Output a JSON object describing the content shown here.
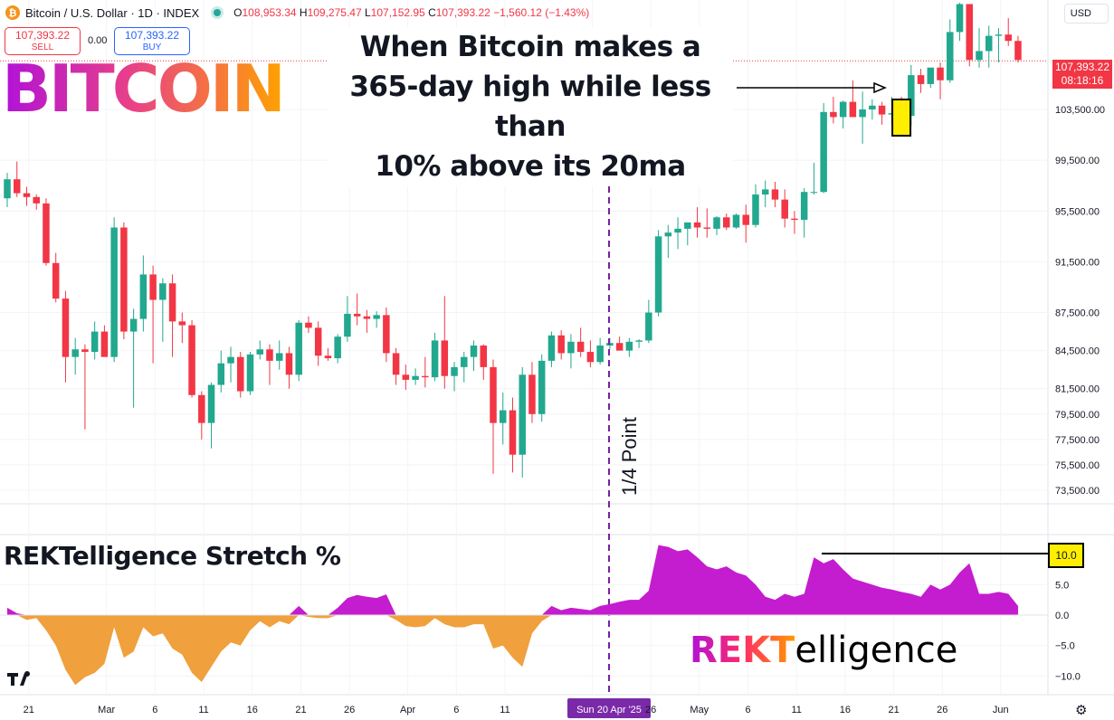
{
  "header": {
    "symbol": "Bitcoin / U.S. Dollar · 1D · INDEX",
    "coin_glyph": "₿",
    "ohlc": {
      "o_label": "O",
      "o": "108,953.34",
      "h_label": "H",
      "h": "109,275.47",
      "l_label": "L",
      "l": "107,152.95",
      "c_label": "C",
      "c": "107,393.22",
      "change": "−1,560.12 (−1.43%)"
    }
  },
  "trade": {
    "sell_price": "107,393.22",
    "sell_label": "SELL",
    "spread": "0.00",
    "buy_price": "107,393.22",
    "buy_label": "BUY"
  },
  "currency": "USD",
  "logo_text": "BITCOIN",
  "annotation": {
    "line1": "When Bitcoin makes a",
    "line2": "365-day high while less than",
    "line3": "10% above its 20ma"
  },
  "marker_label": "1/4 Point",
  "price_tag": {
    "price": "107,393.22",
    "countdown": "08:18:16"
  },
  "indicator": {
    "title": "REKTelligence Stretch %",
    "value_box": "10.0",
    "logo_a": "REKT",
    "logo_b": "elligence"
  },
  "colors": {
    "up": "#22a88e",
    "down": "#f23645",
    "pos_fill": "#c41ccf",
    "neg_fill": "#f0a03c",
    "marker": "#7a1fa2",
    "highlight": "#ffee00"
  },
  "chart_data": [
    {
      "type": "candlestick",
      "title": "Bitcoin / U.S. Dollar · 1D · INDEX",
      "y_ticks": [
        "103,500.00",
        "99,500.00",
        "95,500.00",
        "91,500.00",
        "87,500.00",
        "84,500.00",
        "81,500.00",
        "79,500.00",
        "77,500.00",
        "75,500.00",
        "73,500.00"
      ],
      "x_ticks": [
        "21",
        "Mar",
        "6",
        "11",
        "16",
        "21",
        "26",
        "Apr",
        "6",
        "11",
        "Sun 20 Apr '25",
        "26",
        "May",
        "6",
        "11",
        "16",
        "21",
        "26",
        "Jun"
      ],
      "ylim": [
        72000,
        111000
      ],
      "start_date": "2025-02-20",
      "ohlc": [
        [
          96500,
          98500,
          95800,
          98000
        ],
        [
          98000,
          99400,
          96600,
          96900
        ],
        [
          96900,
          97400,
          95900,
          96600
        ],
        [
          96600,
          96800,
          95600,
          96100
        ],
        [
          96100,
          96500,
          91200,
          91400
        ],
        [
          91400,
          92200,
          88300,
          88600
        ],
        [
          88600,
          89200,
          82000,
          84000
        ],
        [
          84000,
          85500,
          82600,
          84600
        ],
        [
          84600,
          85000,
          78300,
          84400
        ],
        [
          84400,
          86800,
          83800,
          86000
        ],
        [
          86000,
          86500,
          84200,
          84000
        ],
        [
          84000,
          95000,
          83600,
          94200
        ],
        [
          94200,
          94600,
          85400,
          86000
        ],
        [
          86000,
          87800,
          80000,
          87000
        ],
        [
          87000,
          92000,
          86000,
          90500
        ],
        [
          90500,
          91200,
          83500,
          88500
        ],
        [
          88500,
          90200,
          85200,
          89800
        ],
        [
          89800,
          90500,
          84000,
          86800
        ],
        [
          86800,
          87500,
          85100,
          86500
        ],
        [
          86500,
          86900,
          80800,
          81000
        ],
        [
          81000,
          81300,
          77500,
          78800
        ],
        [
          78800,
          82000,
          76800,
          81800
        ],
        [
          81800,
          84500,
          81200,
          83500
        ],
        [
          83500,
          84800,
          82000,
          84000
        ],
        [
          84000,
          84400,
          80800,
          81300
        ],
        [
          81300,
          84400,
          81000,
          84200
        ],
        [
          84200,
          85300,
          83800,
          84600
        ],
        [
          84600,
          85000,
          81800,
          83700
        ],
        [
          83700,
          85300,
          83000,
          84300
        ],
        [
          84300,
          84800,
          81500,
          82600
        ],
        [
          82600,
          86900,
          82100,
          86700
        ],
        [
          86700,
          87200,
          85900,
          86300
        ],
        [
          86300,
          86800,
          83300,
          84100
        ],
        [
          84100,
          84700,
          83700,
          83900
        ],
        [
          83900,
          85800,
          83500,
          85600
        ],
        [
          85600,
          88800,
          85200,
          87400
        ],
        [
          87400,
          89000,
          86500,
          87200
        ],
        [
          87200,
          87700,
          85900,
          87000
        ],
        [
          87000,
          87600,
          86300,
          87300
        ],
        [
          87300,
          87900,
          83600,
          84300
        ],
        [
          84300,
          84700,
          81800,
          82600
        ],
        [
          82600,
          83400,
          81400,
          82200
        ],
        [
          82200,
          83100,
          81800,
          82500
        ],
        [
          82500,
          84000,
          81600,
          82400
        ],
        [
          82400,
          85900,
          82100,
          85300
        ],
        [
          85300,
          88800,
          81500,
          82500
        ],
        [
          82500,
          83600,
          81300,
          83200
        ],
        [
          83200,
          84400,
          82000,
          84000
        ],
        [
          84000,
          85300,
          82900,
          84900
        ],
        [
          84900,
          85000,
          82200,
          83200
        ],
        [
          83200,
          83800,
          74800,
          78800
        ],
        [
          78800,
          81200,
          77100,
          79800
        ],
        [
          79800,
          80800,
          74900,
          76300
        ],
        [
          76300,
          83200,
          74500,
          82600
        ],
        [
          82600,
          83600,
          78800,
          79500
        ],
        [
          79500,
          84200,
          78900,
          83700
        ],
        [
          83700,
          86000,
          83200,
          85700
        ],
        [
          85700,
          86100,
          83800,
          84300
        ],
        [
          84300,
          85800,
          83100,
          85200
        ],
        [
          85200,
          86300,
          84000,
          84400
        ],
        [
          84400,
          85300,
          83200,
          83600
        ],
        [
          83600,
          85500,
          83400,
          84900
        ],
        [
          84900,
          85500,
          84600,
          85100
        ],
        [
          85100,
          85600,
          84600,
          84500
        ],
        [
          84500,
          85500,
          84000,
          85200
        ],
        [
          85200,
          85400,
          84700,
          85300
        ],
        [
          85300,
          88500,
          85100,
          87500
        ],
        [
          87500,
          94000,
          87200,
          93500
        ],
        [
          93500,
          94400,
          91800,
          93800
        ],
        [
          93800,
          95000,
          92500,
          94100
        ],
        [
          94100,
          94300,
          92800,
          94600
        ],
        [
          94600,
          95800,
          93400,
          94200
        ],
        [
          94200,
          95700,
          93400,
          94100
        ],
        [
          94100,
          95100,
          93600,
          95000
        ],
        [
          95000,
          95300,
          94000,
          94200
        ],
        [
          94200,
          95300,
          94100,
          95200
        ],
        [
          95200,
          96000,
          93000,
          94400
        ],
        [
          94400,
          97600,
          94200,
          96800
        ],
        [
          96800,
          97900,
          95800,
          97200
        ],
        [
          97200,
          97800,
          95800,
          96400
        ],
        [
          96400,
          97200,
          94200,
          94900
        ],
        [
          94900,
          95500,
          93700,
          94800
        ],
        [
          94800,
          97300,
          93400,
          97000
        ],
        [
          97000,
          99300,
          96800,
          97000
        ],
        [
          97000,
          104000,
          96900,
          103300
        ],
        [
          103300,
          104500,
          102400,
          102900
        ],
        [
          102900,
          104200,
          102000,
          104100
        ],
        [
          104100,
          105800,
          103000,
          102900
        ],
        [
          102900,
          104900,
          100800,
          103500
        ],
        [
          103500,
          104300,
          102700,
          103800
        ],
        [
          103800,
          104100,
          102300,
          103100
        ],
        [
          103100,
          104500,
          102400,
          103200
        ],
        [
          103200,
          104500,
          102500,
          103000
        ],
        [
          103000,
          107000,
          102200,
          106200
        ],
        [
          106200,
          106700,
          104800,
          105500
        ],
        [
          105500,
          106700,
          105200,
          106800
        ],
        [
          106800,
          107200,
          104300,
          105800
        ],
        [
          105800,
          110600,
          105600,
          109600
        ],
        [
          109600,
          111900,
          108900,
          111800
        ],
        [
          111800,
          111800,
          106900,
          107400
        ],
        [
          107400,
          109900,
          106800,
          108100
        ],
        [
          108100,
          110100,
          106800,
          109300
        ],
        [
          109300,
          109900,
          107200,
          109400
        ],
        [
          109400,
          110700,
          108500,
          108900
        ],
        [
          108900,
          109300,
          107200,
          107400
        ]
      ]
    },
    {
      "type": "area",
      "title": "REKTelligence Stretch %",
      "y_ticks": [
        "5.0",
        "0.0",
        "−5.0",
        "−10.0"
      ],
      "ylim": [
        -12,
        11.5
      ],
      "start_date": "2025-02-20",
      "values": [
        1.2,
        0.3,
        -0.8,
        -0.5,
        -2.5,
        -5.0,
        -9.0,
        -11.5,
        -10.2,
        -9.5,
        -8.0,
        -2.0,
        -7.0,
        -6.0,
        -2.0,
        -3.5,
        -3.0,
        -5.5,
        -6.5,
        -9.5,
        -11.0,
        -8.5,
        -6.0,
        -4.5,
        -5.0,
        -2.5,
        -1.0,
        -2.0,
        -1.0,
        -1.5,
        1.5,
        -0.3,
        -0.5,
        -0.5,
        1.2,
        2.8,
        3.3,
        3.0,
        2.8,
        3.4,
        -0.8,
        -1.8,
        -2.0,
        -1.8,
        -0.5,
        -1.5,
        -2.0,
        -2.0,
        -1.5,
        -1.5,
        -5.5,
        -5.0,
        -7.0,
        -8.5,
        -3.0,
        -1.0,
        1.5,
        0.8,
        1.2,
        1.0,
        0.8,
        1.5,
        1.8,
        2.2,
        2.5,
        2.5,
        4.0,
        11.5,
        11.2,
        10.5,
        10.8,
        9.5,
        8.0,
        7.5,
        8.0,
        7.0,
        6.5,
        5.0,
        3.0,
        2.5,
        3.5,
        3.0,
        3.5,
        9.5,
        8.5,
        9.2,
        7.5,
        6.0,
        5.5,
        5.0,
        4.5,
        4.2,
        3.8,
        3.5,
        3.0,
        5.0,
        4.2,
        5.0,
        7.0,
        8.5,
        3.5,
        3.5,
        3.8,
        3.5,
        1.5
      ]
    }
  ]
}
